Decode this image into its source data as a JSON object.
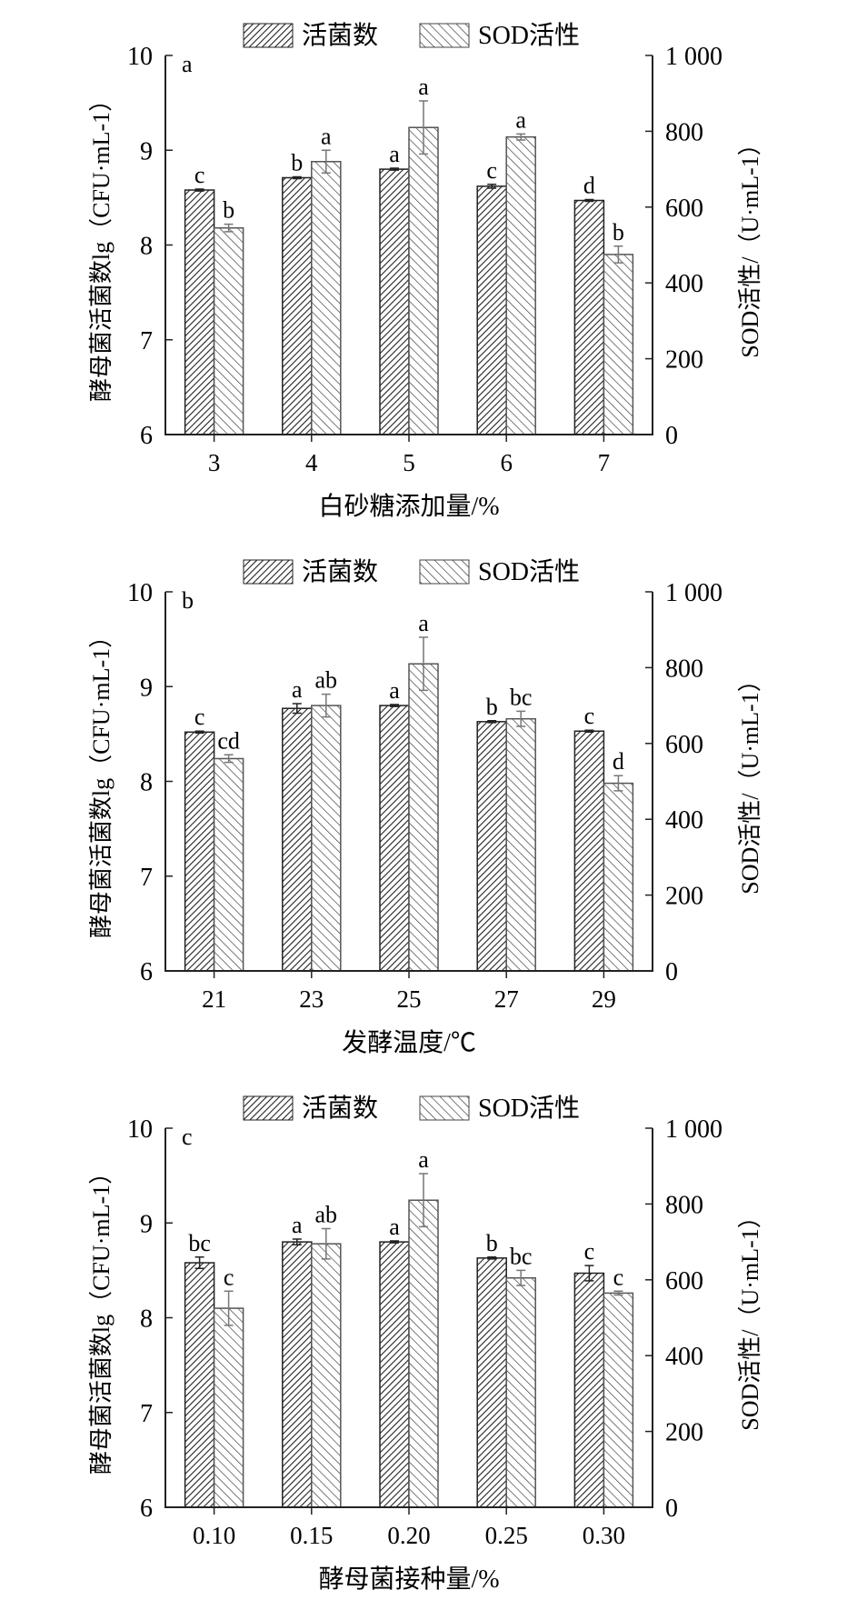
{
  "legend": {
    "series1": "活菌数",
    "series2": "SOD活性"
  },
  "chart_data": [
    {
      "type": "bar",
      "panel": "a",
      "xlabel": "白砂糖添加量/%",
      "ylabel": "酵母菌活菌数lg（CFU·mL-1）",
      "y2label": "SOD活性/（U·mL-1）",
      "categories": [
        "3",
        "4",
        "5",
        "6",
        "7"
      ],
      "ylim": [
        6,
        10
      ],
      "yticks": [
        "6",
        "7",
        "8",
        "9",
        "10"
      ],
      "y2lim": [
        0,
        1000
      ],
      "y2ticks": [
        "0",
        "200",
        "400",
        "600",
        "800",
        "1 000"
      ],
      "series": [
        {
          "name": "活菌数",
          "axis": "left",
          "values": [
            8.58,
            8.71,
            8.8,
            8.62,
            8.47
          ],
          "errors": [
            0.01,
            0.01,
            0.01,
            0.02,
            0.01
          ],
          "letters": [
            "c",
            "b",
            "a",
            "c",
            "d"
          ]
        },
        {
          "name": "SOD活性",
          "axis": "right",
          "values": [
            545,
            720,
            810,
            785,
            475
          ],
          "errors": [
            10,
            30,
            70,
            8,
            22
          ],
          "letters": [
            "b",
            "a",
            "a",
            "a",
            "b"
          ]
        }
      ]
    },
    {
      "type": "bar",
      "panel": "b",
      "xlabel": "发酵温度/℃",
      "ylabel": "酵母菌活菌数lg（CFU·mL-1）",
      "y2label": "SOD活性/（U·mL-1）",
      "categories": [
        "21",
        "23",
        "25",
        "27",
        "29"
      ],
      "ylim": [
        6,
        10
      ],
      "yticks": [
        "6",
        "7",
        "8",
        "9",
        "10"
      ],
      "y2lim": [
        0,
        1000
      ],
      "y2ticks": [
        "0",
        "200",
        "400",
        "600",
        "800",
        "1 000"
      ],
      "series": [
        {
          "name": "活菌数",
          "axis": "left",
          "values": [
            8.52,
            8.77,
            8.8,
            8.63,
            8.53
          ],
          "errors": [
            0.01,
            0.05,
            0.01,
            0.01,
            0.01
          ],
          "letters": [
            "c",
            "a",
            "a",
            "b",
            "c"
          ]
        },
        {
          "name": "SOD活性",
          "axis": "right",
          "values": [
            560,
            700,
            810,
            665,
            495
          ],
          "errors": [
            10,
            30,
            70,
            20,
            20
          ],
          "letters": [
            "cd",
            "ab",
            "a",
            "bc",
            "d"
          ]
        }
      ]
    },
    {
      "type": "bar",
      "panel": "c",
      "xlabel": "酵母菌接种量/%",
      "ylabel": "酵母菌活菌数lg（CFU·mL-1）",
      "y2label": "SOD活性/（U·mL-1）",
      "categories": [
        "0.10",
        "0.15",
        "0.20",
        "0.25",
        "0.30"
      ],
      "ylim": [
        6,
        10
      ],
      "yticks": [
        "6",
        "7",
        "8",
        "9",
        "10"
      ],
      "y2lim": [
        0,
        1000
      ],
      "y2ticks": [
        "0",
        "200",
        "400",
        "600",
        "800",
        "1 000"
      ],
      "series": [
        {
          "name": "活菌数",
          "axis": "left",
          "values": [
            8.58,
            8.8,
            8.8,
            8.63,
            8.47
          ],
          "errors": [
            0.06,
            0.03,
            0.01,
            0.01,
            0.08
          ],
          "letters": [
            "bc",
            "a",
            "a",
            "b",
            "c"
          ]
        },
        {
          "name": "SOD活性",
          "axis": "right",
          "values": [
            525,
            695,
            810,
            605,
            565
          ],
          "errors": [
            45,
            40,
            70,
            20,
            5
          ],
          "letters": [
            "c",
            "ab",
            "a",
            "bc",
            "c"
          ]
        }
      ]
    }
  ]
}
